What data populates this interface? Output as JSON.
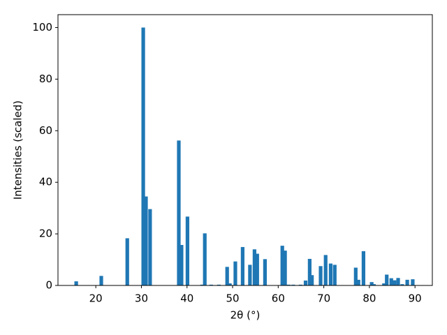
{
  "chart_data": {
    "type": "bar",
    "x_label": "2θ (°)",
    "y_label": "Intensities (scaled)",
    "color": "#1f77b4",
    "x": [
      15.7,
      21.2,
      26.9,
      30.4,
      31.0,
      31.9,
      38.2,
      38.8,
      40.1,
      43.3,
      43.9,
      45.3,
      47.0,
      48.8,
      49.4,
      50.6,
      52.2,
      53.8,
      54.8,
      55.4,
      57.1,
      60.9,
      61.5,
      62.3,
      63.3,
      64.9,
      66.0,
      66.9,
      67.4,
      69.3,
      70.4,
      71.5,
      72.4,
      77.0,
      77.6,
      78.7,
      80.5,
      81.0,
      83.2,
      83.8,
      84.8,
      85.5,
      86.3,
      87.2,
      88.3,
      89.5
    ],
    "values": [
      1.6,
      3.7,
      18.3,
      100,
      34.5,
      29.6,
      56.2,
      15.7,
      26.7,
      0.3,
      20.2,
      0.3,
      0.3,
      7.2,
      0.8,
      9.3,
      14.9,
      8.0,
      14.0,
      12.3,
      10.2,
      15.4,
      13.5,
      0.3,
      0.3,
      0.3,
      1.9,
      10.3,
      4.0,
      7.5,
      11.8,
      8.5,
      8.0,
      6.9,
      2.2,
      13.3,
      1.3,
      0.5,
      0.8,
      4.2,
      2.8,
      2.0,
      2.9,
      0.5,
      2.2,
      2.4
    ],
    "xlim": [
      11.7,
      93.8
    ],
    "ylim": [
      0,
      105
    ],
    "xticks": [
      20,
      30,
      40,
      50,
      60,
      70,
      80,
      90
    ],
    "yticks": [
      0,
      20,
      40,
      60,
      80,
      100
    ]
  }
}
